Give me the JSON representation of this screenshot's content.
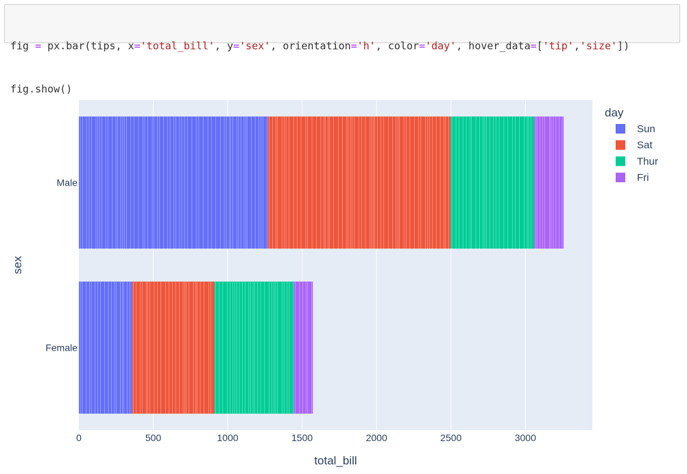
{
  "code": {
    "line1": [
      {
        "t": "fig ",
        "c": "var"
      },
      {
        "t": "=",
        "c": "op"
      },
      {
        "t": " px.bar(tips, x",
        "c": "var"
      },
      {
        "t": "=",
        "c": "op"
      },
      {
        "t": "'total_bill'",
        "c": "str"
      },
      {
        "t": ", y",
        "c": "var"
      },
      {
        "t": "=",
        "c": "op"
      },
      {
        "t": "'sex'",
        "c": "str"
      },
      {
        "t": ", orientation",
        "c": "var"
      },
      {
        "t": "=",
        "c": "op"
      },
      {
        "t": "'h'",
        "c": "str"
      },
      {
        "t": ", color",
        "c": "var"
      },
      {
        "t": "=",
        "c": "op"
      },
      {
        "t": "'day'",
        "c": "str"
      },
      {
        "t": ", hover_data",
        "c": "var"
      },
      {
        "t": "=",
        "c": "op"
      },
      {
        "t": "[",
        "c": "var"
      },
      {
        "t": "'tip'",
        "c": "str"
      },
      {
        "t": ",",
        "c": "var"
      },
      {
        "t": "'size'",
        "c": "str"
      },
      {
        "t": "])",
        "c": "var"
      }
    ],
    "line2": "fig.show()"
  },
  "chart_data": {
    "type": "bar",
    "orientation": "h",
    "barmode": "stack",
    "categories": [
      "Male",
      "Female"
    ],
    "xlabel": "total_bill",
    "ylabel": "sex",
    "xlim": [
      0,
      3450
    ],
    "xticks": [
      0,
      500,
      1000,
      1500,
      2000,
      2500,
      3000
    ],
    "grid": true,
    "legend": {
      "title": "day",
      "placement": "right"
    },
    "series": [
      {
        "name": "Sun",
        "color": "#636efa",
        "values": [
          1269,
          358
        ]
      },
      {
        "name": "Sat",
        "color": "#ef553b",
        "values": [
          1228,
          552
        ]
      },
      {
        "name": "Thur",
        "color": "#00cc96",
        "values": [
          562,
          534
        ]
      },
      {
        "name": "Fri",
        "color": "#ab63fa",
        "values": [
          198,
          128
        ]
      }
    ]
  }
}
